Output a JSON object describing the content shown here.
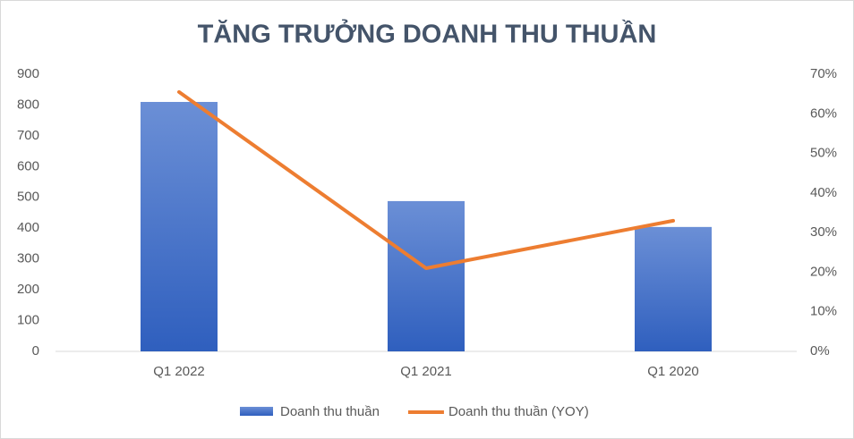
{
  "chart_data": {
    "type": "bar-line",
    "title": "TĂNG TRƯỞNG DOANH THU THUẦN",
    "categories": [
      "Q1 2022",
      "Q1 2021",
      "Q1 2020"
    ],
    "series": [
      {
        "name": "Doanh thu thuần",
        "type": "bar",
        "color": "#4472c4",
        "values": [
          810,
          488,
          404
        ]
      },
      {
        "name": "Doanh thu thuần (YOY)",
        "type": "line",
        "axis": "y2",
        "color": "#ed7d31",
        "values": [
          65.5,
          21,
          33
        ]
      }
    ],
    "ylim": [
      0,
      900
    ],
    "yticks": [
      0,
      100,
      200,
      300,
      400,
      500,
      600,
      700,
      800,
      900
    ],
    "y2lim": [
      0,
      70
    ],
    "y2ticks": [
      {
        "value": 0,
        "label": "0%"
      },
      {
        "value": 10,
        "label": "10%"
      },
      {
        "value": 20,
        "label": "20%"
      },
      {
        "value": 30,
        "label": "30%"
      },
      {
        "value": 40,
        "label": "40%"
      },
      {
        "value": 50,
        "label": "50%"
      },
      {
        "value": 60,
        "label": "60%"
      },
      {
        "value": 70,
        "label": "70%"
      }
    ],
    "grid": false,
    "legend": "bottom"
  }
}
